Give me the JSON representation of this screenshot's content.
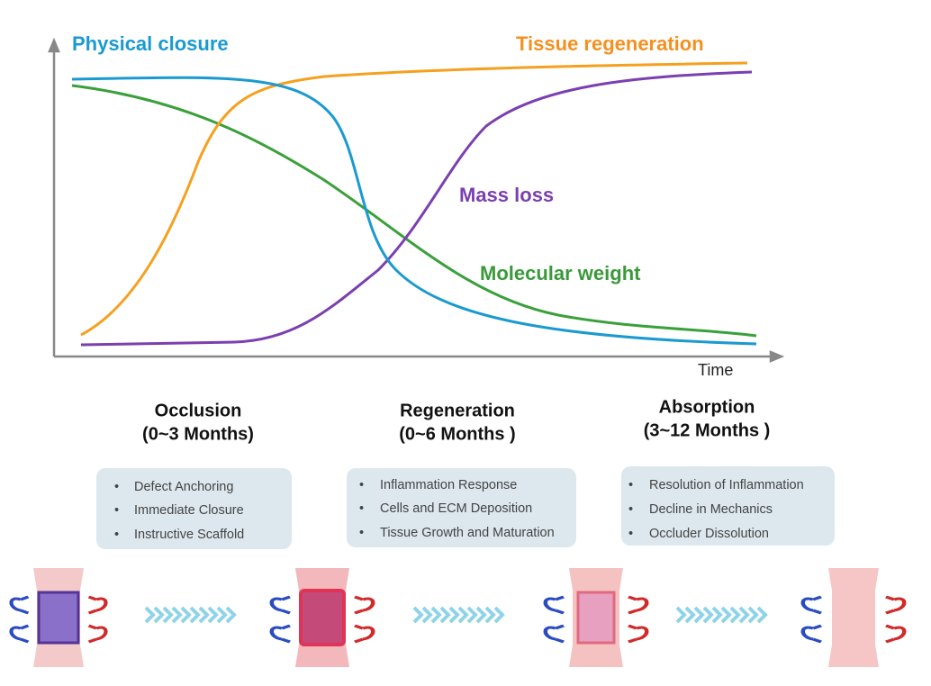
{
  "curves": [
    {
      "label": "Physical closure"
    },
    {
      "label": "Tissue regeneration"
    },
    {
      "label": "Mass loss"
    },
    {
      "label": "Molecular weight"
    }
  ],
  "x_axis_label": "Time",
  "stages": [
    {
      "title": "Occlusion",
      "period": "(0~3 Months)",
      "items": [
        "Defect Anchoring",
        "Immediate Closure",
        "Instructive Scaffold"
      ]
    },
    {
      "title": "Regeneration",
      "period": "(0~6 Months )",
      "items": [
        "Inflammation Response",
        "Cells and ECM Deposition",
        "Tissue Growth and Maturation"
      ]
    },
    {
      "title": "Absorption",
      "period": "(3~12 Months )",
      "items": [
        "Resolution of Inflammation",
        "Decline in Mechanics",
        "Occluder Dissolution"
      ]
    }
  ]
}
